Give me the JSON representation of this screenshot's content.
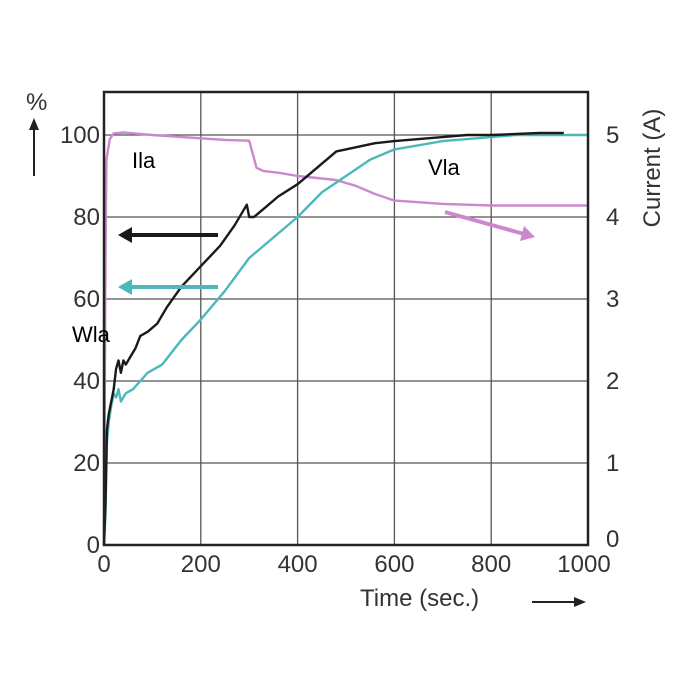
{
  "chart_data": {
    "type": "line",
    "title": "",
    "xlabel": "Time (sec.)",
    "ylabel_left": "%",
    "ylabel_right": "Current (A)",
    "xlim": [
      0,
      1000
    ],
    "ylim_left": [
      0,
      100
    ],
    "ylim_right": [
      0,
      5
    ],
    "grid": true,
    "x_ticks": [
      "0",
      "200",
      "400",
      "600",
      "800",
      "1000"
    ],
    "y_left_ticks": [
      "0",
      "20",
      "40",
      "60",
      "80",
      "100"
    ],
    "y_right_ticks": [
      "0",
      "1",
      "2",
      "3",
      "4",
      "5"
    ],
    "series": [
      {
        "name": "Wla",
        "axis": "left",
        "color": "#1a1a1a",
        "points": [
          [
            0,
            0
          ],
          [
            3,
            10
          ],
          [
            6,
            28
          ],
          [
            10,
            32
          ],
          [
            20,
            38
          ],
          [
            25,
            43
          ],
          [
            30,
            45
          ],
          [
            35,
            42
          ],
          [
            40,
            45
          ],
          [
            45,
            44
          ],
          [
            55,
            46
          ],
          [
            65,
            48
          ],
          [
            75,
            51
          ],
          [
            90,
            52
          ],
          [
            110,
            54
          ],
          [
            130,
            58
          ],
          [
            160,
            63
          ],
          [
            200,
            68
          ],
          [
            240,
            73
          ],
          [
            270,
            78
          ],
          [
            295,
            83
          ],
          [
            300,
            80
          ],
          [
            310,
            80
          ],
          [
            330,
            82
          ],
          [
            360,
            85
          ],
          [
            400,
            88
          ],
          [
            440,
            92
          ],
          [
            480,
            96
          ],
          [
            520,
            97
          ],
          [
            560,
            98
          ],
          [
            600,
            98.5
          ],
          [
            650,
            99
          ],
          [
            700,
            99.5
          ],
          [
            750,
            100
          ],
          [
            800,
            100
          ],
          [
            900,
            100.5
          ],
          [
            950,
            100.5
          ]
        ]
      },
      {
        "name": "Vla",
        "axis": "left",
        "color": "#4db8bb",
        "points": [
          [
            0,
            0
          ],
          [
            3,
            8
          ],
          [
            6,
            25
          ],
          [
            10,
            30
          ],
          [
            15,
            34
          ],
          [
            20,
            37
          ],
          [
            25,
            36
          ],
          [
            30,
            38
          ],
          [
            35,
            35
          ],
          [
            45,
            37
          ],
          [
            60,
            38
          ],
          [
            75,
            40
          ],
          [
            90,
            42
          ],
          [
            120,
            44
          ],
          [
            160,
            50
          ],
          [
            200,
            55
          ],
          [
            250,
            62
          ],
          [
            300,
            70
          ],
          [
            350,
            75
          ],
          [
            400,
            80
          ],
          [
            450,
            86
          ],
          [
            500,
            90
          ],
          [
            550,
            94
          ],
          [
            600,
            96.5
          ],
          [
            650,
            97.5
          ],
          [
            700,
            98.5
          ],
          [
            750,
            99
          ],
          [
            800,
            99.5
          ],
          [
            850,
            100
          ],
          [
            900,
            100
          ],
          [
            1000,
            100
          ]
        ]
      },
      {
        "name": "Ila",
        "axis": "right",
        "color": "#cc88cc",
        "points": [
          [
            0,
            0
          ],
          [
            3,
            3.5
          ],
          [
            5,
            4.7
          ],
          [
            12,
            4.95
          ],
          [
            20,
            5.02
          ],
          [
            40,
            5.03
          ],
          [
            100,
            5.0
          ],
          [
            200,
            4.96
          ],
          [
            250,
            4.94
          ],
          [
            300,
            4.93
          ],
          [
            315,
            4.6
          ],
          [
            330,
            4.56
          ],
          [
            360,
            4.54
          ],
          [
            400,
            4.5
          ],
          [
            450,
            4.47
          ],
          [
            480,
            4.45
          ],
          [
            520,
            4.38
          ],
          [
            560,
            4.28
          ],
          [
            600,
            4.2
          ],
          [
            650,
            4.18
          ],
          [
            700,
            4.16
          ],
          [
            750,
            4.15
          ],
          [
            800,
            4.14
          ],
          [
            900,
            4.14
          ],
          [
            1000,
            4.14
          ]
        ]
      }
    ],
    "annotations": [
      {
        "text": "Ila",
        "color": "#cc88cc"
      },
      {
        "text": "Vla",
        "color": "#4db8bb"
      },
      {
        "text": "Wla",
        "color": "#333333"
      }
    ],
    "arrows": [
      {
        "direction": "left",
        "meaning": "Wla uses left axis",
        "color": "#1a1a1a"
      },
      {
        "direction": "left",
        "meaning": "Vla uses left axis",
        "color": "#4db8bb"
      },
      {
        "direction": "right",
        "meaning": "Ila uses right axis",
        "color": "#cc88cc"
      }
    ]
  }
}
